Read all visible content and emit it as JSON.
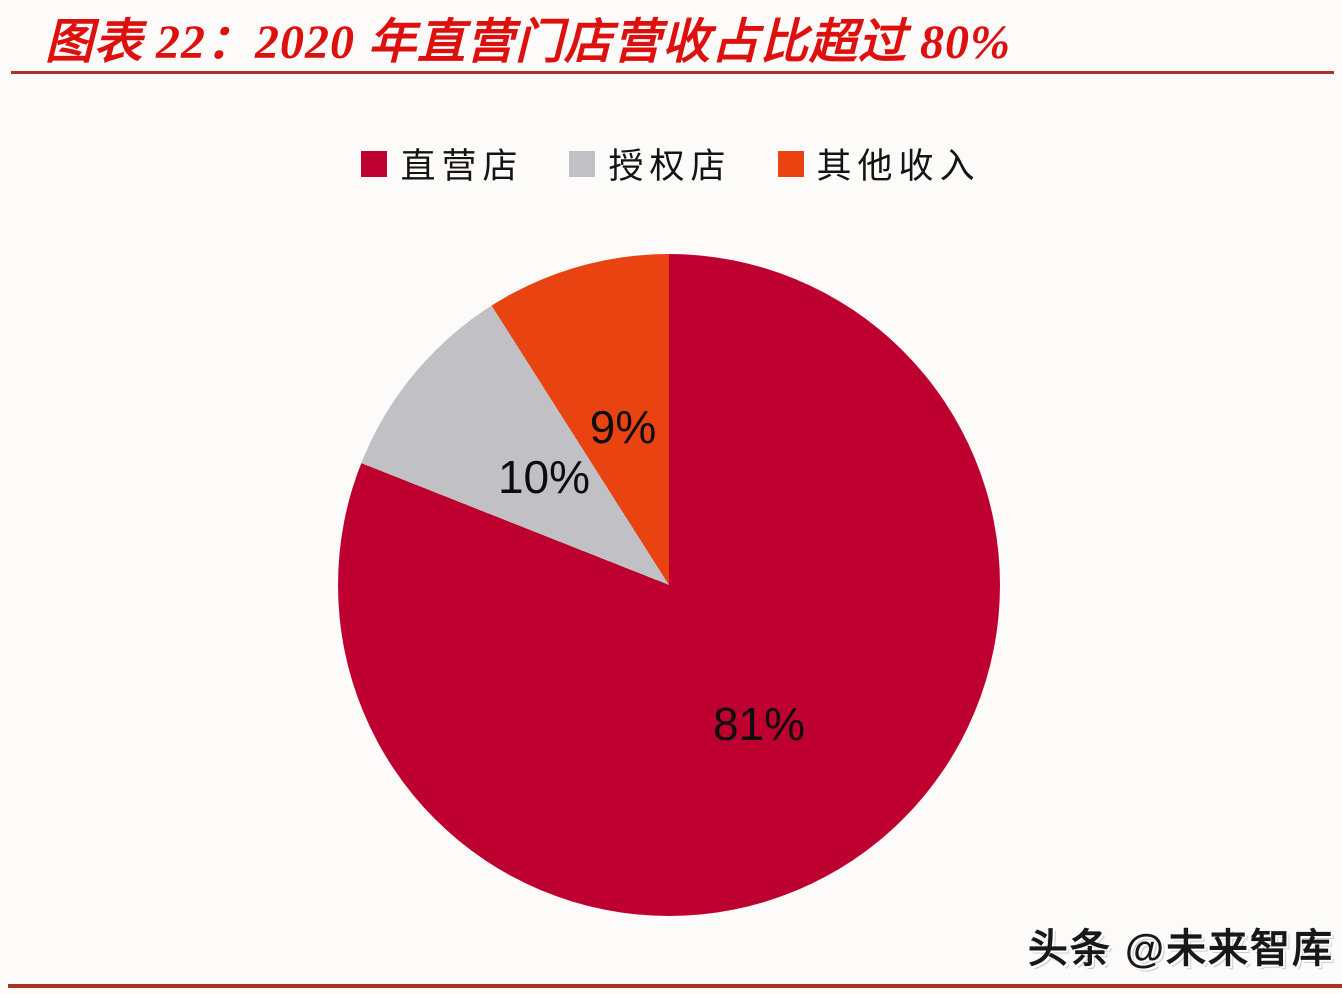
{
  "page": {
    "background": "#fdfafa"
  },
  "header": {
    "title_color": "#de100e",
    "rule_color": "#b03028"
  },
  "footer": {
    "rule_color": "#a93226"
  },
  "watermark": {
    "text": "头条 @未来智库"
  },
  "chart_data": {
    "type": "pie",
    "title": "图表 22：2020 年直营门店营收占比超过 80%",
    "legend_position": "top",
    "start_angle_deg": 0,
    "direction": "clockwise",
    "slices": [
      {
        "label": "直营店",
        "value": 81,
        "display": "81%",
        "color": "#be0030"
      },
      {
        "label": "授权店",
        "value": 10,
        "display": "10%",
        "color": "#c1c0c4"
      },
      {
        "label": "其他收入",
        "value": 9,
        "display": "9%",
        "color": "#e84310"
      }
    ]
  }
}
